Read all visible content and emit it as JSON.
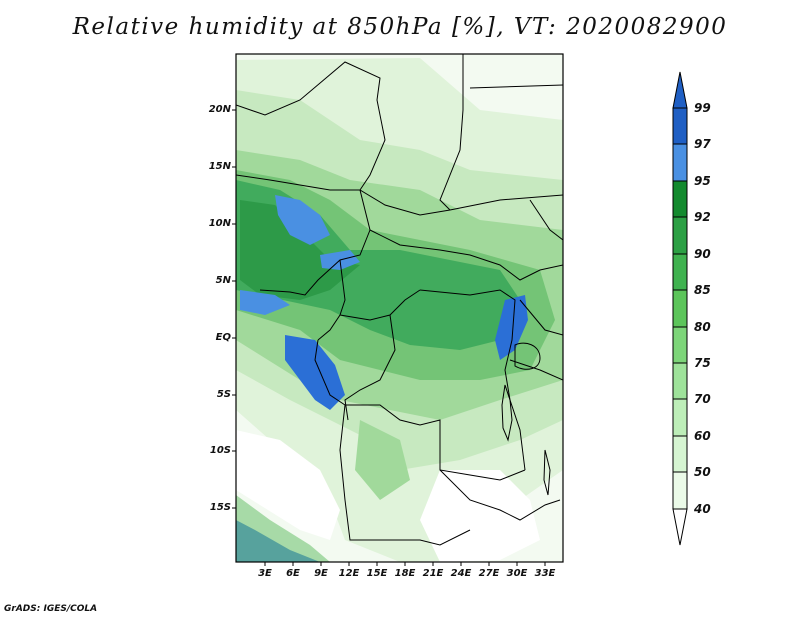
{
  "title": "Relative humidity at 850hPa [%], VT: 2020082900",
  "credit": "GrADS: IGES/COLA",
  "map": {
    "lat_labels": [
      "20N",
      "15N",
      "10N",
      "5N",
      "EQ",
      "5S",
      "10S",
      "15S"
    ],
    "lon_labels": [
      "3E",
      "6E",
      "9E",
      "12E",
      "15E",
      "18E",
      "21E",
      "24E",
      "27E",
      "30E",
      "33E"
    ],
    "lat_range": [
      -20,
      24
    ],
    "lon_range": [
      0,
      35
    ]
  },
  "colorbar": {
    "labels": [
      "99",
      "97",
      "95",
      "92",
      "90",
      "85",
      "80",
      "75",
      "70",
      "60",
      "50",
      "40"
    ],
    "colors": {
      "40": "#f7fcf5",
      "50": "#e5f5e0",
      "60": "#c7e9c0",
      "70": "#a1d99b",
      "75": "#8ad484",
      "80": "#74c476",
      "85": "#41ab5d",
      "90": "#2d9a48",
      "92": "#238b45",
      "95": "#4a90e2",
      "97": "#2b6fd6",
      "99": "#1f5fc4"
    }
  }
}
